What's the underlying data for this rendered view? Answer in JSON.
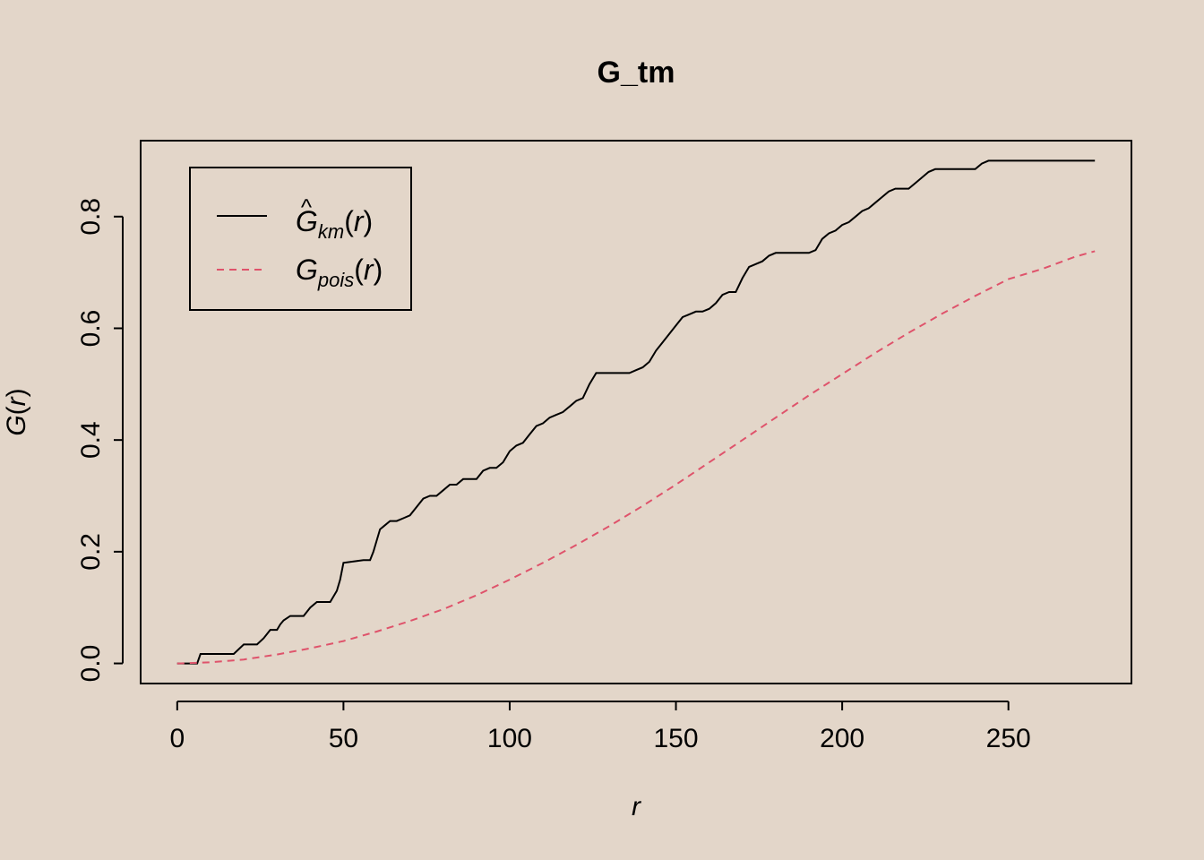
{
  "chart_data": {
    "type": "line",
    "title": "G_tm",
    "xlabel": "r",
    "ylabel": "G(r)",
    "xlim": [
      -11,
      287
    ],
    "ylim": [
      -0.036,
      0.936
    ],
    "xticks": [
      0,
      50,
      100,
      150,
      200,
      250
    ],
    "xtick_labels": [
      "0",
      "50",
      "100",
      "150",
      "200",
      "250"
    ],
    "yticks": [
      0.0,
      0.2,
      0.4,
      0.6,
      0.8
    ],
    "ytick_labels": [
      "0.0",
      "0.2",
      "0.4",
      "0.6",
      "0.8"
    ],
    "legend_position": "top-left",
    "colors": {
      "km": "#000000",
      "pois": "#df536b",
      "background": "#e3d6c9"
    },
    "series": [
      {
        "name": "Ĝkm(r)",
        "name_base": "G",
        "name_sub": "km",
        "hat": true,
        "style": "solid",
        "x": [
          0,
          3,
          6,
          7,
          8,
          16,
          17,
          20,
          22,
          24,
          26,
          28,
          30,
          31,
          32,
          34,
          36,
          38,
          40,
          42,
          44,
          46,
          48,
          49,
          50,
          56,
          58,
          59,
          60,
          61,
          62,
          64,
          66,
          68,
          70,
          72,
          74,
          76,
          78,
          80,
          82,
          84,
          86,
          88,
          90,
          92,
          94,
          96,
          98,
          100,
          102,
          104,
          106,
          108,
          110,
          112,
          114,
          116,
          118,
          120,
          122,
          124,
          126,
          128,
          130,
          132,
          134,
          136,
          138,
          140,
          142,
          144,
          146,
          148,
          150,
          152,
          154,
          156,
          158,
          160,
          162,
          164,
          166,
          168,
          170,
          172,
          174,
          176,
          178,
          180,
          182,
          184,
          186,
          188,
          190,
          192,
          194,
          196,
          198,
          200,
          202,
          204,
          206,
          208,
          210,
          212,
          214,
          216,
          218,
          220,
          222,
          224,
          226,
          228,
          230,
          232,
          234,
          236,
          238,
          240,
          242,
          244,
          246,
          248,
          250,
          252,
          254,
          256,
          258,
          260,
          262,
          264,
          266,
          268,
          270,
          272,
          274,
          276
        ],
        "y": [
          0.0,
          0.0,
          0.0,
          0.017,
          0.017,
          0.017,
          0.017,
          0.034,
          0.034,
          0.034,
          0.045,
          0.06,
          0.06,
          0.07,
          0.077,
          0.085,
          0.085,
          0.085,
          0.1,
          0.11,
          0.11,
          0.11,
          0.13,
          0.15,
          0.18,
          0.185,
          0.185,
          0.2,
          0.22,
          0.24,
          0.245,
          0.255,
          0.255,
          0.26,
          0.265,
          0.28,
          0.295,
          0.3,
          0.3,
          0.31,
          0.32,
          0.32,
          0.33,
          0.33,
          0.33,
          0.345,
          0.35,
          0.35,
          0.36,
          0.38,
          0.39,
          0.395,
          0.41,
          0.425,
          0.43,
          0.44,
          0.445,
          0.45,
          0.46,
          0.47,
          0.475,
          0.5,
          0.52,
          0.52,
          0.52,
          0.52,
          0.52,
          0.52,
          0.525,
          0.53,
          0.54,
          0.56,
          0.575,
          0.59,
          0.605,
          0.62,
          0.625,
          0.63,
          0.63,
          0.635,
          0.645,
          0.66,
          0.665,
          0.665,
          0.69,
          0.71,
          0.715,
          0.72,
          0.73,
          0.735,
          0.735,
          0.735,
          0.735,
          0.735,
          0.735,
          0.74,
          0.76,
          0.77,
          0.775,
          0.785,
          0.79,
          0.8,
          0.81,
          0.815,
          0.825,
          0.835,
          0.845,
          0.85,
          0.85,
          0.85,
          0.86,
          0.87,
          0.88,
          0.885,
          0.885,
          0.885,
          0.885,
          0.885,
          0.885,
          0.885,
          0.895,
          0.9,
          0.9,
          0.9,
          0.9,
          0.9,
          0.9,
          0.9,
          0.9,
          0.9,
          0.9,
          0.9,
          0.9,
          0.9,
          0.9,
          0.9,
          0.9,
          0.9
        ]
      },
      {
        "name": "Gpois(r)",
        "name_base": "G",
        "name_sub": "pois",
        "hat": false,
        "style": "dashed",
        "x": [
          0,
          10,
          20,
          30,
          40,
          50,
          60,
          70,
          80,
          90,
          100,
          110,
          120,
          130,
          140,
          150,
          160,
          170,
          180,
          190,
          200,
          210,
          220,
          230,
          240,
          250,
          260,
          270,
          276
        ],
        "y": [
          0.0,
          0.002,
          0.007,
          0.016,
          0.027,
          0.04,
          0.057,
          0.076,
          0.097,
          0.122,
          0.15,
          0.18,
          0.212,
          0.246,
          0.282,
          0.32,
          0.36,
          0.4,
          0.44,
          0.48,
          0.518,
          0.556,
          0.592,
          0.626,
          0.658,
          0.688,
          0.706,
          0.728,
          0.738
        ]
      }
    ]
  }
}
